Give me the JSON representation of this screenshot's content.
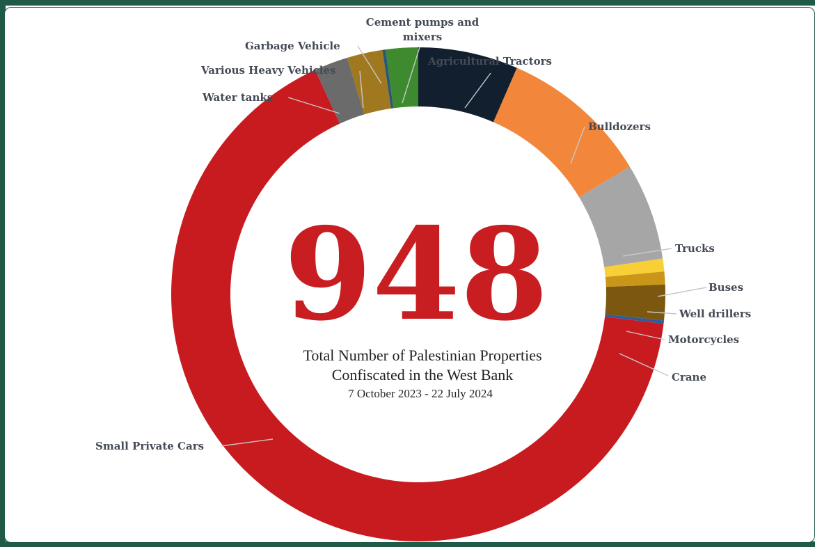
{
  "chart_data": {
    "type": "pie",
    "center_text": "948",
    "caption_line1": "Total Number of Palestinian  Properties",
    "caption_line2": "Confiscated in the West Bank",
    "caption_line3": "7 October 2023 - 22 July  2024",
    "slices": [
      {
        "label": "Agricultural Tractors",
        "value": 62,
        "color": "#121f2e"
      },
      {
        "label": "Bulldozers",
        "value": 93,
        "color": "#f2863a"
      },
      {
        "label": "Trucks",
        "value": 60,
        "color": "#a6a6a6"
      },
      {
        "label": "Buses",
        "value": 8,
        "color": "#f8cf35"
      },
      {
        "label": "Well drillers",
        "value": 8,
        "color": "#c9961a"
      },
      {
        "label": "Motorcycles",
        "value": 22,
        "color": "#7b5710"
      },
      {
        "label": "Crane",
        "value": 2,
        "color": "#2f5c9a"
      },
      {
        "label": "Small Private Cars",
        "value": 628,
        "color": "#c81b20"
      },
      {
        "label": "Water tanks",
        "value": 21,
        "color": "#6b6b6b"
      },
      {
        "label": "Various Heavy Vehicles",
        "value": 22,
        "color": "#a07820"
      },
      {
        "label": "Garbage Vehicle",
        "value": 2,
        "color": "#2b5876"
      },
      {
        "label": "Cement pumps and mixers",
        "value": 20,
        "color": "#3e8a2f"
      }
    ]
  }
}
